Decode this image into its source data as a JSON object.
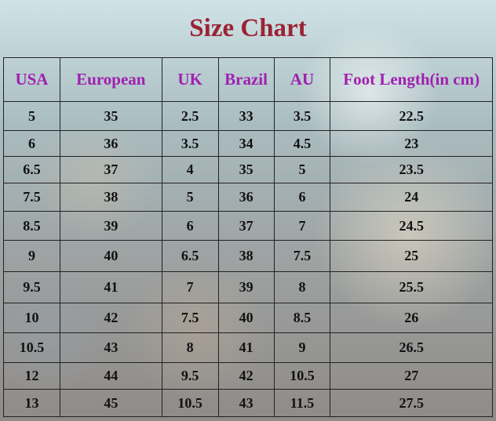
{
  "title": "Size Chart",
  "table": {
    "headers": [
      "USA",
      "European",
      "UK",
      "Brazil",
      "AU",
      "Foot Length(in cm)"
    ],
    "rows": [
      [
        5,
        35,
        2.5,
        33,
        3.5,
        22.5
      ],
      [
        6,
        36,
        3.5,
        34,
        4.5,
        23
      ],
      [
        6.5,
        37,
        4,
        35,
        5,
        23.5
      ],
      [
        7.5,
        38,
        5,
        36,
        6,
        24
      ],
      [
        8.5,
        39,
        6,
        37,
        7,
        24.5
      ],
      [
        9,
        40,
        6.5,
        38,
        7.5,
        25
      ],
      [
        9.5,
        41,
        7,
        39,
        8,
        25.5
      ],
      [
        10,
        42,
        7.5,
        40,
        8.5,
        26
      ],
      [
        10.5,
        43,
        8,
        41,
        9,
        26.5
      ],
      [
        12,
        44,
        9.5,
        42,
        10.5,
        27
      ],
      [
        13,
        45,
        10.5,
        43,
        11.5,
        27.5
      ]
    ]
  }
}
